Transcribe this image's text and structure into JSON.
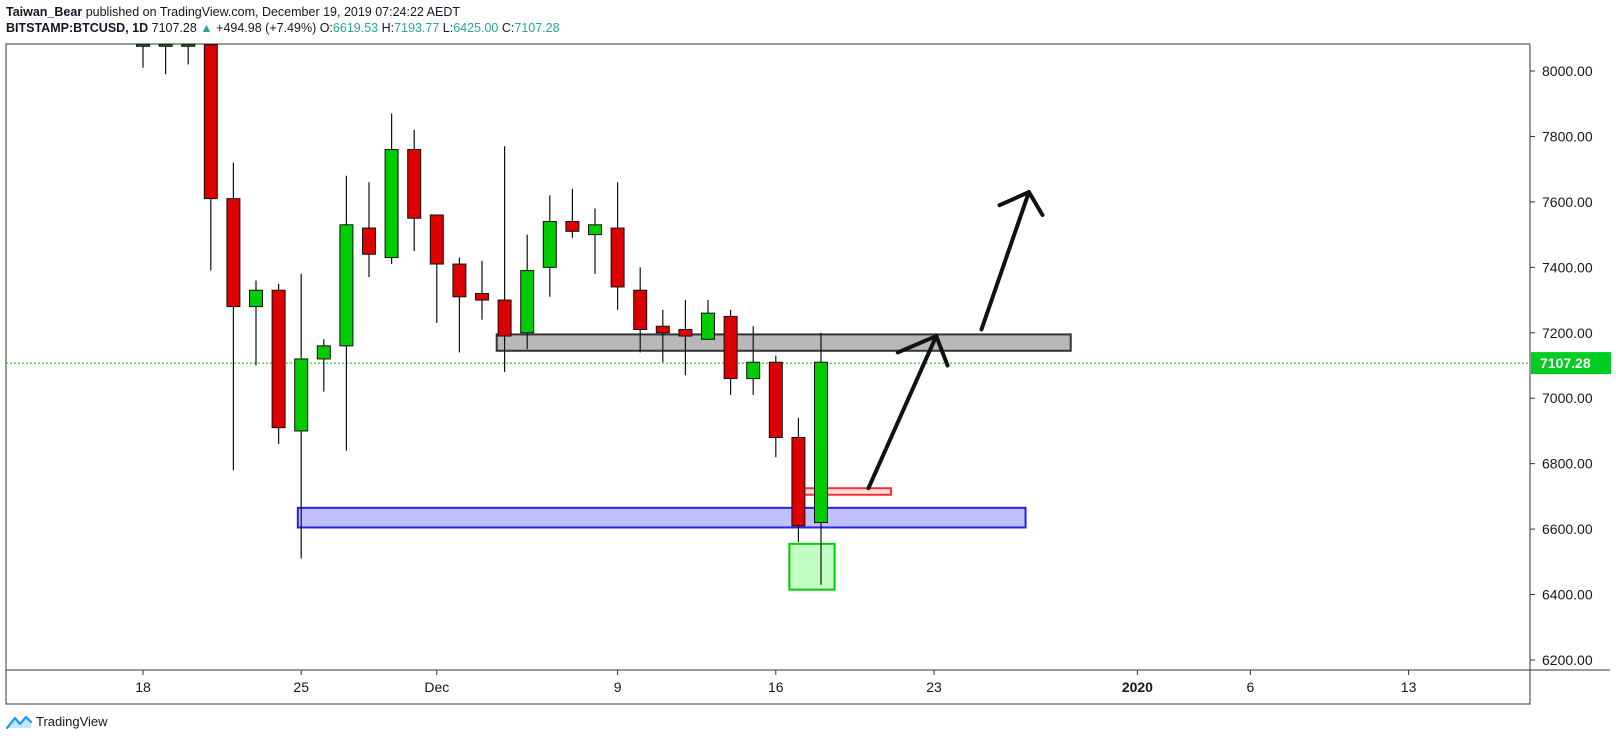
{
  "header": {
    "author": "Taiwan_Bear",
    "published_text": "published on TradingView.com, December 19, 2019 07:24:22 AEDT",
    "symbol": "BITSTAMP:BTCUSD, 1D",
    "last": "7107.28",
    "change_arrow": "▲",
    "change": "+494.98 (+7.49%)",
    "o_label": "O:",
    "o": "6619.53",
    "h_label": "H:",
    "h": "7193.77",
    "l_label": "L:",
    "l": "6425.00",
    "c_label": "C:",
    "c": "7107.28"
  },
  "footer": {
    "brand": "TradingView",
    "icon": "tradingview-logo-icon"
  },
  "colors": {
    "up": "#00cc00",
    "down": "#dd0000",
    "price_line": "#00bb00",
    "price_label_bg": "#00cc22",
    "support_zone": "#8888ff",
    "resistance_zone": "#999999"
  },
  "chart_data": {
    "type": "candlestick",
    "ylim": [
      6150,
      8080
    ],
    "y_ticks": [
      6200,
      6400,
      6600,
      6800,
      7000,
      7200,
      7400,
      7600,
      7800,
      8000
    ],
    "y_tick_labels": [
      "6200.00",
      "6400.00",
      "6600.00",
      "6800.00",
      "7000.00",
      "7200.00",
      "7400.00",
      "7600.00",
      "7800.00",
      "8000.00"
    ],
    "x_ticks": [
      {
        "day": 0,
        "label": "18"
      },
      {
        "day": 7,
        "label": "25"
      },
      {
        "day": 13,
        "label": "Dec"
      },
      {
        "day": 21,
        "label": "9"
      },
      {
        "day": 28,
        "label": "16"
      },
      {
        "day": 35,
        "label": "23"
      },
      {
        "day": 44,
        "label": "2020"
      },
      {
        "day": 49,
        "label": "6"
      },
      {
        "day": 56,
        "label": "13"
      }
    ],
    "last_price": 7107.28,
    "last_price_label": "7107.28",
    "candles": [
      {
        "day": 0,
        "o": 8080,
        "h": 8080,
        "l": 8010,
        "c": 8080
      },
      {
        "day": 1,
        "o": 8080,
        "h": 8080,
        "l": 7990,
        "c": 8080
      },
      {
        "day": 2,
        "o": 8080,
        "h": 8080,
        "l": 8020,
        "c": 8080
      },
      {
        "day": 3,
        "o": 8080,
        "h": 8080,
        "l": 7390,
        "c": 7610
      },
      {
        "day": 4,
        "o": 7610,
        "h": 7720,
        "l": 6780,
        "c": 7280
      },
      {
        "day": 5,
        "o": 7280,
        "h": 7360,
        "l": 7100,
        "c": 7330
      },
      {
        "day": 6,
        "o": 7330,
        "h": 7350,
        "l": 6860,
        "c": 6910
      },
      {
        "day": 7,
        "o": 6900,
        "h": 7380,
        "l": 6510,
        "c": 7120
      },
      {
        "day": 8,
        "o": 7120,
        "h": 7180,
        "l": 7020,
        "c": 7160
      },
      {
        "day": 9,
        "o": 7160,
        "h": 7680,
        "l": 6840,
        "c": 7530
      },
      {
        "day": 10,
        "o": 7520,
        "h": 7660,
        "l": 7370,
        "c": 7440
      },
      {
        "day": 11,
        "o": 7430,
        "h": 7870,
        "l": 7410,
        "c": 7760
      },
      {
        "day": 12,
        "o": 7760,
        "h": 7820,
        "l": 7450,
        "c": 7550
      },
      {
        "day": 13,
        "o": 7560,
        "h": 7560,
        "l": 7230,
        "c": 7410
      },
      {
        "day": 14,
        "o": 7410,
        "h": 7430,
        "l": 7140,
        "c": 7310
      },
      {
        "day": 15,
        "o": 7320,
        "h": 7420,
        "l": 7240,
        "c": 7300
      },
      {
        "day": 16,
        "o": 7300,
        "h": 7770,
        "l": 7080,
        "c": 7190
      },
      {
        "day": 17,
        "o": 7200,
        "h": 7500,
        "l": 7150,
        "c": 7390
      },
      {
        "day": 18,
        "o": 7400,
        "h": 7620,
        "l": 7310,
        "c": 7540
      },
      {
        "day": 19,
        "o": 7540,
        "h": 7640,
        "l": 7490,
        "c": 7510
      },
      {
        "day": 20,
        "o": 7500,
        "h": 7580,
        "l": 7380,
        "c": 7530
      },
      {
        "day": 21,
        "o": 7520,
        "h": 7660,
        "l": 7270,
        "c": 7340
      },
      {
        "day": 22,
        "o": 7330,
        "h": 7400,
        "l": 7140,
        "c": 7210
      },
      {
        "day": 23,
        "o": 7220,
        "h": 7270,
        "l": 7110,
        "c": 7200
      },
      {
        "day": 24,
        "o": 7210,
        "h": 7300,
        "l": 7070,
        "c": 7190
      },
      {
        "day": 25,
        "o": 7180,
        "h": 7300,
        "l": 7180,
        "c": 7260
      },
      {
        "day": 26,
        "o": 7250,
        "h": 7270,
        "l": 7010,
        "c": 7060
      },
      {
        "day": 27,
        "o": 7060,
        "h": 7220,
        "l": 7010,
        "c": 7110
      },
      {
        "day": 28,
        "o": 7110,
        "h": 7130,
        "l": 6820,
        "c": 6880
      },
      {
        "day": 29,
        "o": 6880,
        "h": 6940,
        "l": 6560,
        "c": 6610
      },
      {
        "day": 30,
        "o": 6620,
        "h": 7200,
        "l": 6430,
        "c": 7110
      }
    ]
  }
}
